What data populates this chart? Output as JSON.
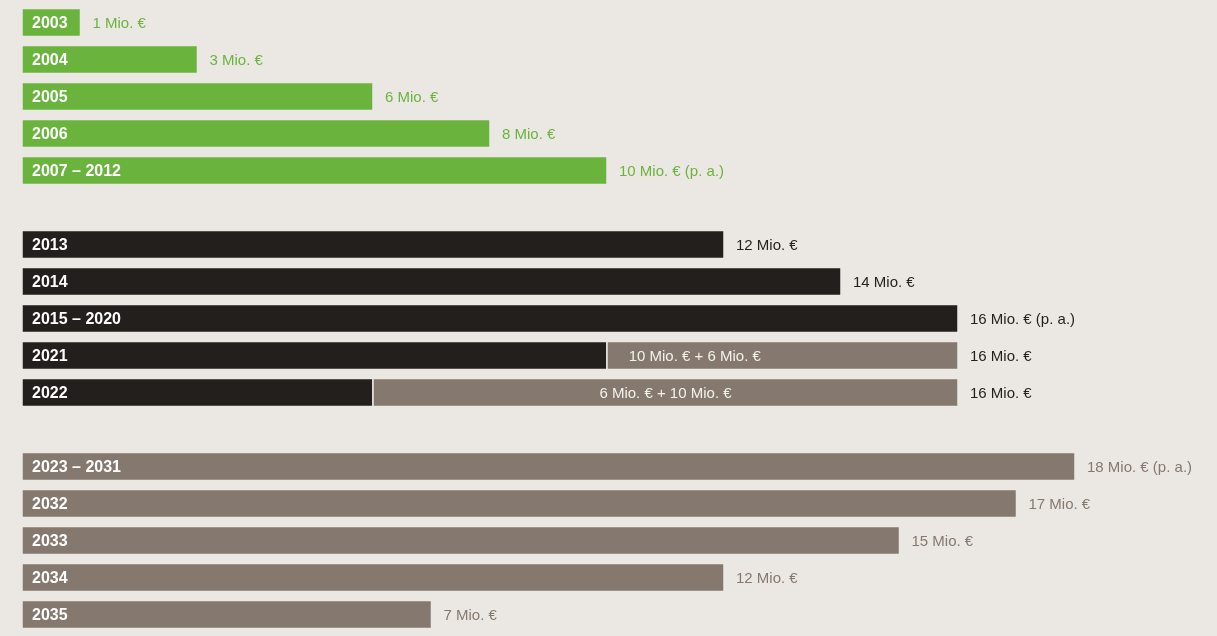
{
  "chart_data": {
    "type": "bar",
    "orientation": "horizontal",
    "stacked": true,
    "categories": [
      "2003",
      "2004",
      "2005",
      "2006",
      "2007 – 2012",
      null,
      "2013",
      "2014",
      "2015 – 2020",
      "2021",
      "2022",
      null,
      "2023 – 2031",
      "2032",
      "2033",
      "2034",
      "2035"
    ],
    "series": [
      {
        "color": "#6ab43e",
        "values": [
          1,
          3,
          6,
          8,
          10,
          null,
          null,
          null,
          null,
          null,
          null,
          null,
          null,
          null,
          null,
          null,
          null
        ],
        "value_labels": [
          "1 Mio. €",
          "3 Mio. €",
          "6 Mio. €",
          "8 Mio. €",
          "10 Mio. € (p. a.)",
          null,
          null,
          null,
          null,
          null,
          null,
          null,
          null,
          null,
          null,
          null,
          null
        ]
      },
      {
        "color": "#231f1c",
        "values": [
          null,
          null,
          null,
          null,
          null,
          null,
          12,
          14,
          16,
          10,
          6,
          null,
          null,
          null,
          null,
          null,
          null
        ],
        "value_labels": [
          null,
          null,
          null,
          null,
          null,
          null,
          "12 Mio. €",
          "14 Mio. €",
          "16 Mio. € (p. a.)",
          null,
          null,
          null,
          null,
          null,
          null,
          null,
          null
        ]
      },
      {
        "color": "#85796f",
        "values": [
          null,
          null,
          null,
          null,
          null,
          null,
          null,
          null,
          null,
          6,
          10,
          null,
          18,
          17,
          15,
          12,
          7
        ],
        "value_labels": [
          null,
          null,
          null,
          null,
          null,
          null,
          null,
          null,
          null,
          null,
          null,
          null,
          "18 Mio. € (p. a.)",
          "17 Mio. €",
          "15 Mio. €",
          "12 Mio. €",
          "7 Mio. €"
        ]
      }
    ],
    "totals": [
      null,
      null,
      null,
      null,
      null,
      null,
      null,
      null,
      null,
      "16 Mio. €",
      "16 Mio. €",
      null,
      null,
      null,
      null,
      null,
      null
    ],
    "annotations": [
      {
        "text": "10 Mio. € + 6 Mio. €",
        "x": 11.5,
        "y": "2021"
      },
      {
        "text": "6 Mio. € + 10 Mio. €",
        "x": 11,
        "y": "2022"
      }
    ]
  }
}
